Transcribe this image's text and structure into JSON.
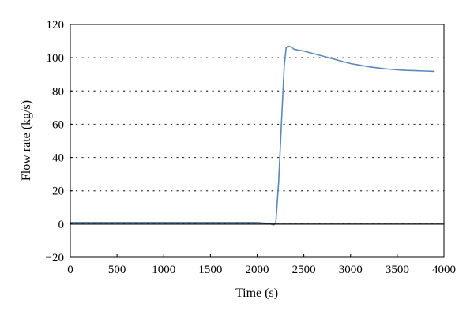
{
  "chart_data": {
    "type": "line",
    "title": "",
    "xlabel": "Time (s)",
    "ylabel": "Flow rate (kg/s)",
    "xlim": [
      0,
      4000
    ],
    "ylim": [
      -20,
      120
    ],
    "x_ticks": [
      0,
      500,
      1000,
      1500,
      2000,
      2500,
      3000,
      3500,
      4000
    ],
    "y_ticks": [
      -20,
      0,
      20,
      40,
      60,
      80,
      100,
      120
    ],
    "grid": "horizontal dotted",
    "legend": "none",
    "zero_line": true,
    "series": [
      {
        "color": "#5b88b8",
        "x": [
          0,
          500,
          1000,
          1500,
          2000,
          2100,
          2150,
          2180,
          2200,
          2230,
          2260,
          2290,
          2310,
          2330,
          2360,
          2400,
          2450,
          2500,
          2600,
          2700,
          2800,
          2900,
          3000,
          3100,
          3200,
          3300,
          3400,
          3500,
          3600,
          3700,
          3800,
          3900
        ],
        "y": [
          1,
          1,
          1,
          1,
          1,
          0.5,
          0,
          -0.5,
          1,
          25,
          60,
          95,
          106,
          107,
          106.5,
          105,
          104.5,
          104,
          102.5,
          101,
          99.5,
          98,
          96.5,
          95.5,
          94.5,
          93.8,
          93.2,
          92.7,
          92.4,
          92.2,
          92,
          91.8
        ]
      }
    ]
  }
}
